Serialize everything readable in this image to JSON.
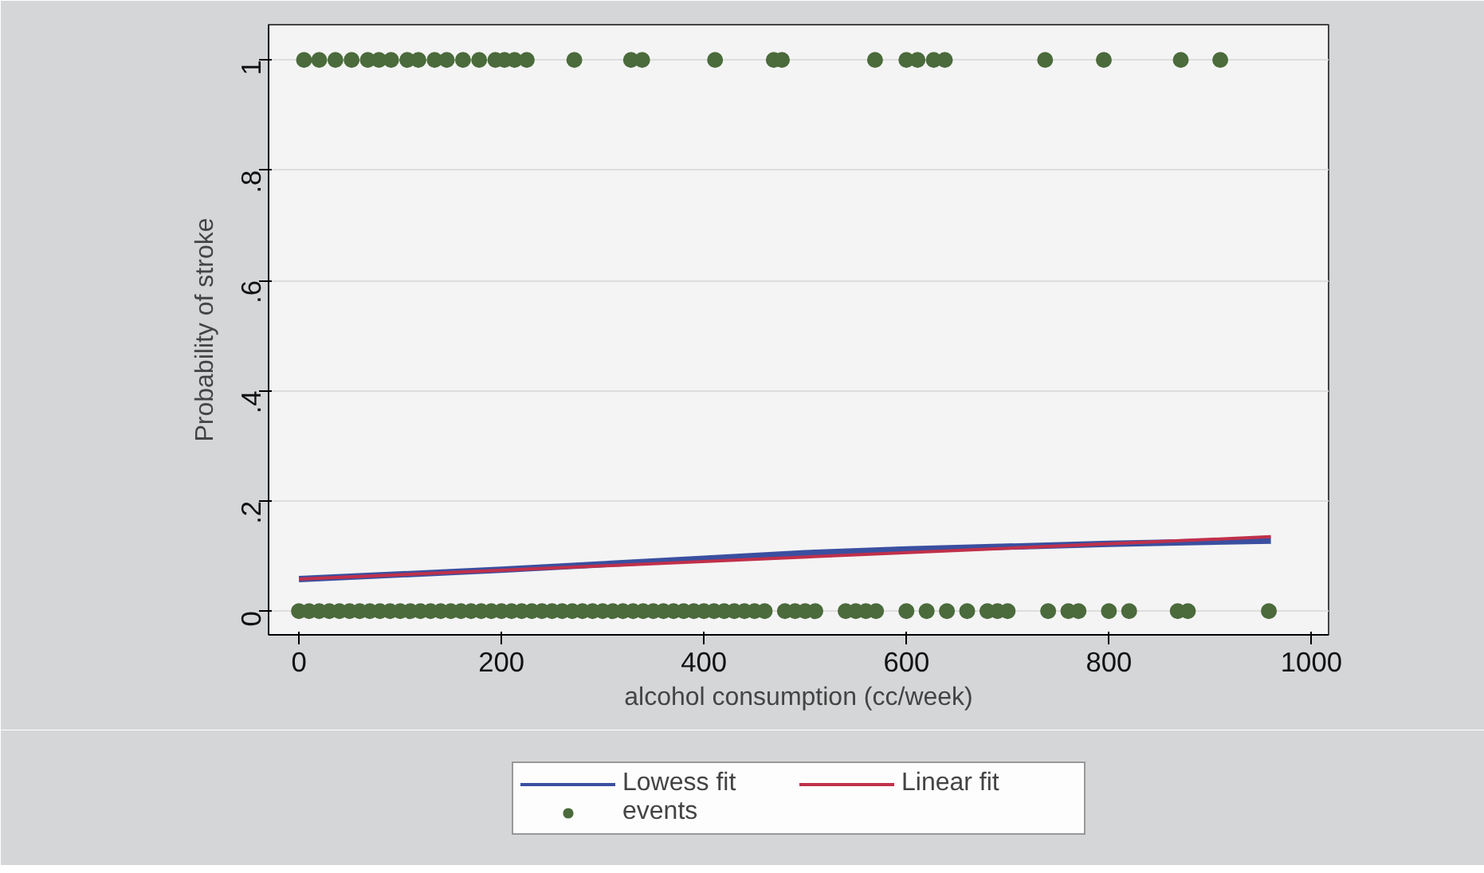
{
  "chart_data": {
    "type": "line",
    "xlabel": "alcohol consumption (cc/week)",
    "ylabel": "Probability of stroke",
    "xlim": [
      -30,
      1017
    ],
    "ylim": [
      -0.043,
      1.064
    ],
    "xticks": [
      0,
      200,
      400,
      600,
      800,
      1000
    ],
    "yticks": [
      {
        "value": 0,
        "label": "0"
      },
      {
        "value": 0.2,
        "label": ".2"
      },
      {
        "value": 0.4,
        "label": ".4"
      },
      {
        "value": 0.6,
        "label": ".6"
      },
      {
        "value": 0.8,
        "label": ".8"
      },
      {
        "value": 1,
        "label": "1"
      }
    ],
    "grid": "y",
    "legend": "bottom",
    "series": [
      {
        "name": "Lowess fit",
        "color": "#3a4fa0",
        "x": [
          0,
          200,
          400,
          500,
          600,
          800,
          960
        ],
        "values": [
          0.058,
          0.075,
          0.095,
          0.105,
          0.112,
          0.122,
          0.128
        ]
      },
      {
        "name": "Linear fit",
        "type": "line",
        "color": "#c0304a",
        "x": [
          0,
          960
        ],
        "values": [
          0.058,
          0.135
        ]
      },
      {
        "name": "events",
        "type": "scatter",
        "marker": "circle",
        "color": "#4b6b3c",
        "x": [
          5,
          20,
          36,
          52,
          68,
          79,
          91,
          107,
          118,
          134,
          146,
          162,
          178,
          194,
          203,
          213,
          225,
          272,
          328,
          339,
          411,
          469,
          477,
          569,
          600,
          611,
          627,
          638,
          737,
          795,
          871,
          910,
          0,
          10,
          20,
          30,
          40,
          50,
          60,
          70,
          80,
          90,
          100,
          110,
          120,
          130,
          140,
          150,
          160,
          170,
          180,
          190,
          200,
          210,
          220,
          230,
          240,
          250,
          260,
          270,
          280,
          290,
          300,
          310,
          320,
          330,
          340,
          350,
          360,
          370,
          380,
          390,
          400,
          410,
          420,
          430,
          440,
          450,
          460,
          480,
          490,
          500,
          510,
          540,
          550,
          560,
          570,
          600,
          620,
          640,
          660,
          680,
          690,
          700,
          740,
          760,
          770,
          800,
          820,
          868,
          878,
          958
        ],
        "values": [
          1,
          1,
          1,
          1,
          1,
          1,
          1,
          1,
          1,
          1,
          1,
          1,
          1,
          1,
          1,
          1,
          1,
          1,
          1,
          1,
          1,
          1,
          1,
          1,
          1,
          1,
          1,
          1,
          1,
          1,
          1,
          1,
          0,
          0,
          0,
          0,
          0,
          0,
          0,
          0,
          0,
          0,
          0,
          0,
          0,
          0,
          0,
          0,
          0,
          0,
          0,
          0,
          0,
          0,
          0,
          0,
          0,
          0,
          0,
          0,
          0,
          0,
          0,
          0,
          0,
          0,
          0,
          0,
          0,
          0,
          0,
          0,
          0,
          0,
          0,
          0,
          0,
          0,
          0,
          0,
          0,
          0,
          0,
          0,
          0,
          0,
          0,
          0,
          0,
          0,
          0,
          0,
          0,
          0,
          0,
          0,
          0,
          0,
          0,
          0,
          0,
          0
        ]
      }
    ]
  }
}
